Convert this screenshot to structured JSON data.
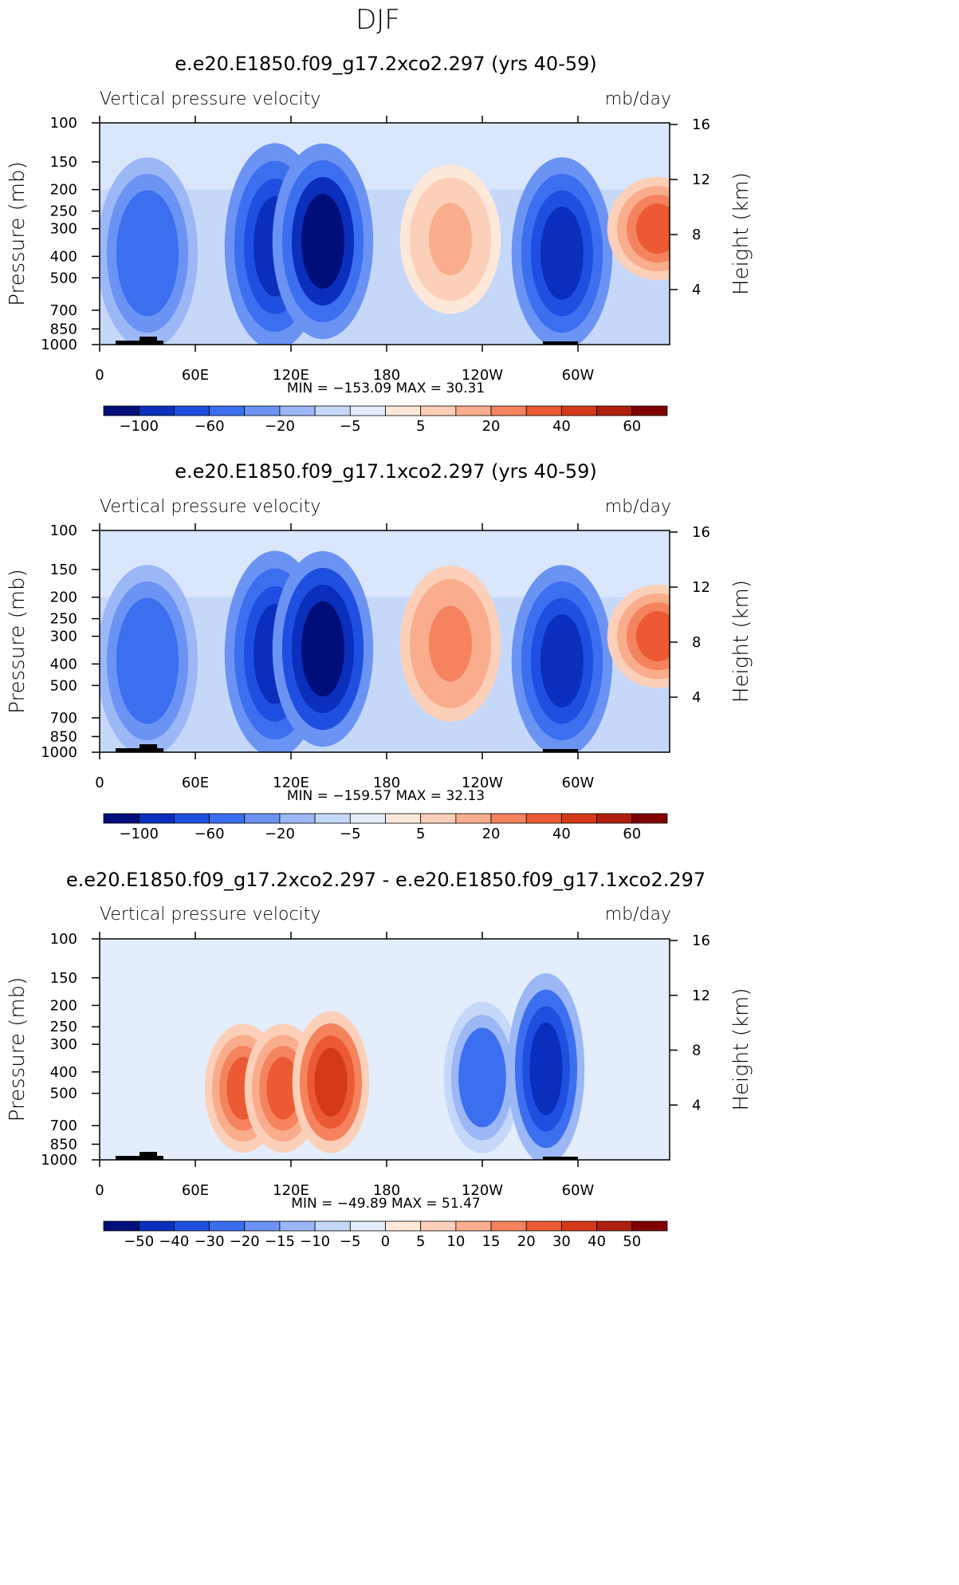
{
  "page_title": "DJF",
  "chart_data": [
    {
      "type": "heatmap",
      "title": "e.e20.E1850.f09_g17.2xco2.297 (yrs 40-59)",
      "subtitle_left": "Vertical pressure velocity",
      "subtitle_right": "mb/day",
      "ylabel": "Pressure (mb)",
      "ylabel_right": "Height (km)",
      "x_ticks": [
        "0",
        "60E",
        "120E",
        "180",
        "120W",
        "60W"
      ],
      "y_ticks": [
        "100",
        "150",
        "200",
        "250",
        "300",
        "400",
        "500",
        "700",
        "850",
        "1000"
      ],
      "y_right_ticks": [
        "16",
        "12",
        "8",
        "4"
      ],
      "stats": "MIN = −153.09   MAX =   30.31",
      "colorbar_labels": [
        "−100",
        "−60",
        "−20",
        "−5",
        "5",
        "20",
        "40",
        "60"
      ],
      "colorbar_colors": [
        "#000e7a",
        "#0a2fbd",
        "#1f4fe0",
        "#3b6ff0",
        "#6b93f3",
        "#9bb7f6",
        "#c6d8fa",
        "#e3edfc",
        "#fde8da",
        "#fcd0b8",
        "#f9ad8d",
        "#f4835e",
        "#eb5a34",
        "#d43a1a",
        "#b0200e",
        "#800000"
      ],
      "features": [
        {
          "lon": 30,
          "p_top": 150,
          "p_bot": 1000,
          "value": -60
        },
        {
          "lon": 110,
          "p_top": 130,
          "p_bot": 1000,
          "value": -90
        },
        {
          "lon": 140,
          "p_top": 130,
          "p_bot": 900,
          "value": -110
        },
        {
          "lon": 220,
          "p_top": 160,
          "p_bot": 700,
          "value": 10
        },
        {
          "lon": 290,
          "p_top": 150,
          "p_bot": 1000,
          "value": -100
        },
        {
          "lon": 350,
          "p_top": 180,
          "p_bot": 500,
          "value": 30
        }
      ]
    },
    {
      "type": "heatmap",
      "title": "e.e20.E1850.f09_g17.1xco2.297 (yrs 40-59)",
      "subtitle_left": "Vertical pressure velocity",
      "subtitle_right": "mb/day",
      "ylabel": "Pressure (mb)",
      "ylabel_right": "Height (km)",
      "x_ticks": [
        "0",
        "60E",
        "120E",
        "180",
        "120W",
        "60W"
      ],
      "y_ticks": [
        "100",
        "150",
        "200",
        "250",
        "300",
        "400",
        "500",
        "700",
        "850",
        "1000"
      ],
      "y_right_ticks": [
        "16",
        "12",
        "8",
        "4"
      ],
      "stats": "MIN = −159.57   MAX =   32.13",
      "colorbar_labels": [
        "−100",
        "−60",
        "−20",
        "−5",
        "5",
        "20",
        "40",
        "60"
      ],
      "colorbar_colors": [
        "#000e7a",
        "#0a2fbd",
        "#1f4fe0",
        "#3b6ff0",
        "#6b93f3",
        "#9bb7f6",
        "#c6d8fa",
        "#e3edfc",
        "#fde8da",
        "#fcd0b8",
        "#f9ad8d",
        "#f4835e",
        "#eb5a34",
        "#d43a1a",
        "#b0200e",
        "#800000"
      ],
      "features": [
        {
          "lon": 30,
          "p_top": 150,
          "p_bot": 1000,
          "value": -60
        },
        {
          "lon": 110,
          "p_top": 130,
          "p_bot": 1000,
          "value": -100
        },
        {
          "lon": 140,
          "p_top": 130,
          "p_bot": 900,
          "value": -130
        },
        {
          "lon": 220,
          "p_top": 150,
          "p_bot": 700,
          "value": 20
        },
        {
          "lon": 290,
          "p_top": 150,
          "p_bot": 1000,
          "value": -100
        },
        {
          "lon": 350,
          "p_top": 180,
          "p_bot": 500,
          "value": 30
        }
      ]
    },
    {
      "type": "heatmap",
      "title": "e.e20.E1850.f09_g17.2xco2.297 - e.e20.E1850.f09_g17.1xco2.297",
      "subtitle_left": "Vertical pressure velocity",
      "subtitle_right": "mb/day",
      "ylabel": "Pressure (mb)",
      "ylabel_right": "Height (km)",
      "x_ticks": [
        "0",
        "60E",
        "120E",
        "180",
        "120W",
        "60W"
      ],
      "y_ticks": [
        "100",
        "150",
        "200",
        "250",
        "300",
        "400",
        "500",
        "700",
        "850",
        "1000"
      ],
      "y_right_ticks": [
        "16",
        "12",
        "8",
        "4"
      ],
      "stats": "MIN = −49.89   MAX =   51.47",
      "colorbar_labels": [
        "−50",
        "−40",
        "−30",
        "−20",
        "−15",
        "−10",
        "−5",
        "0",
        "5",
        "10",
        "15",
        "20",
        "30",
        "40",
        "50"
      ],
      "colorbar_colors": [
        "#000e7a",
        "#0a2fbd",
        "#1f4fe0",
        "#3b6ff0",
        "#6b93f3",
        "#9bb7f6",
        "#c6d8fa",
        "#e3edfc",
        "#fde8da",
        "#fcd0b8",
        "#f9ad8d",
        "#f4835e",
        "#eb5a34",
        "#d43a1a",
        "#b0200e",
        "#800000"
      ],
      "features": [
        {
          "lon": 90,
          "p_top": 250,
          "p_bot": 900,
          "value": 25
        },
        {
          "lon": 115,
          "p_top": 250,
          "p_bot": 900,
          "value": 22
        },
        {
          "lon": 145,
          "p_top": 220,
          "p_bot": 900,
          "value": 30
        },
        {
          "lon": 240,
          "p_top": 200,
          "p_bot": 900,
          "value": -30
        },
        {
          "lon": 280,
          "p_top": 150,
          "p_bot": 1000,
          "value": -45
        }
      ]
    }
  ]
}
